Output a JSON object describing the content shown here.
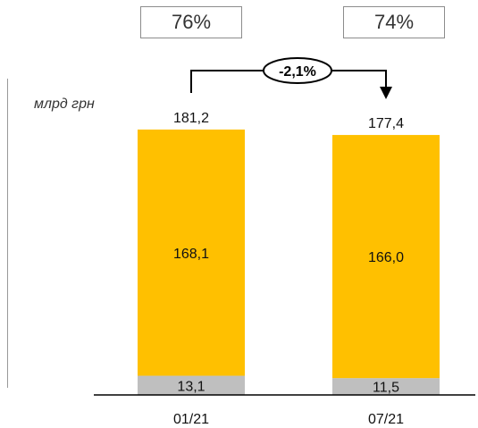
{
  "share_boxes": [
    "76%",
    "74%"
  ],
  "unit_label": "млрд грн",
  "change_label": "-2,1%",
  "colors": {
    "main": "#FFC000",
    "base": "#BFBFBF"
  },
  "chart_data": {
    "type": "bar",
    "stacked": true,
    "categories": [
      "01/21",
      "07/21"
    ],
    "totals": [
      181.2,
      177.4
    ],
    "total_labels": [
      "181,2",
      "177,4"
    ],
    "series": [
      {
        "values": [
          13.1,
          11.5
        ],
        "labels": [
          "13,1",
          "11,5"
        ]
      },
      {
        "values": [
          168.1,
          166.0
        ],
        "labels": [
          "168,1",
          "166,0"
        ]
      }
    ]
  }
}
